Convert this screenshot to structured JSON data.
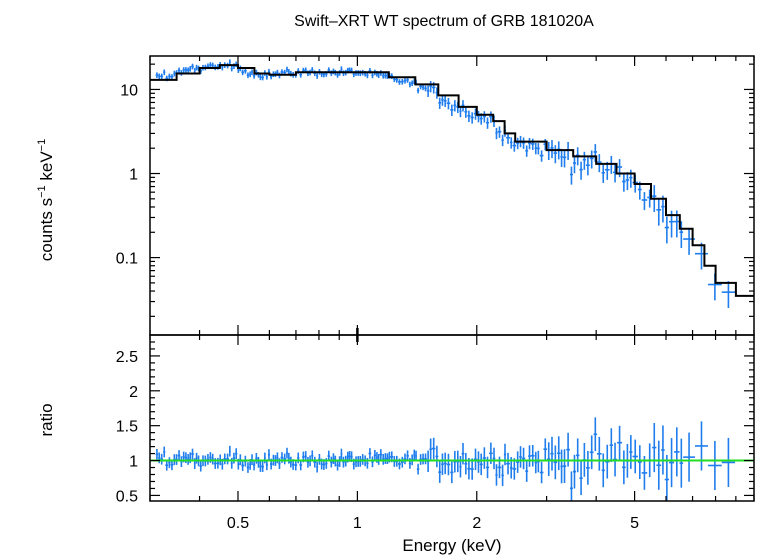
{
  "chart_data": {
    "type": "scatter",
    "title": "Swift–XRT WT spectrum of GRB 181020A",
    "xlabel": "Energy (keV)",
    "x_scale": "log",
    "xlim": [
      0.3,
      10
    ],
    "x_ticks": [
      {
        "value": 0.5,
        "label": "0.5"
      },
      {
        "value": 1,
        "label": "1"
      },
      {
        "value": 2,
        "label": "2"
      },
      {
        "value": 5,
        "label": "5"
      }
    ],
    "top_panel": {
      "ylabel_main": "counts s",
      "ylabel_exp1": "−1",
      "ylabel_mid": " keV",
      "ylabel_exp2": "−1",
      "y_scale": "log",
      "ylim": [
        0.012,
        25
      ],
      "y_ticks": [
        {
          "value": 10,
          "label": "10"
        },
        {
          "value": 1,
          "label": "1"
        },
        {
          "value": 0.1,
          "label": "0.1"
        }
      ],
      "model": {
        "name": "model",
        "color": "#000000",
        "x": [
          0.3,
          0.35,
          0.4,
          0.45,
          0.5,
          0.55,
          0.6,
          0.7,
          0.8,
          1.0,
          1.2,
          1.4,
          1.6,
          1.8,
          2.0,
          2.2,
          2.35,
          2.5,
          3.0,
          3.5,
          4.0,
          4.5,
          5.0,
          5.5,
          6.0,
          6.5,
          7.0,
          7.5,
          8.0,
          9.0,
          10.0
        ],
        "y": [
          13.0,
          15.5,
          18.0,
          19.5,
          18.0,
          15.5,
          15.0,
          16.0,
          16.0,
          16.0,
          14.0,
          11.5,
          8.5,
          6.2,
          5.0,
          4.2,
          3.0,
          2.4,
          1.9,
          1.6,
          1.3,
          1.0,
          0.75,
          0.5,
          0.32,
          0.22,
          0.14,
          0.08,
          0.05,
          0.035,
          0.025
        ]
      },
      "data": {
        "name": "data",
        "color": "#1f7ded"
      }
    },
    "bottom_panel": {
      "ylabel": "ratio",
      "ylim": [
        0.42,
        2.8
      ],
      "y_ticks": [
        {
          "value": 0.5,
          "label": "0.5"
        },
        {
          "value": 1,
          "label": "1"
        },
        {
          "value": 1.5,
          "label": "1.5"
        },
        {
          "value": 2,
          "label": "2"
        },
        {
          "value": 2.5,
          "label": "2.5"
        }
      ],
      "reference_line": {
        "value": 1,
        "color": "#22dd22"
      }
    }
  }
}
